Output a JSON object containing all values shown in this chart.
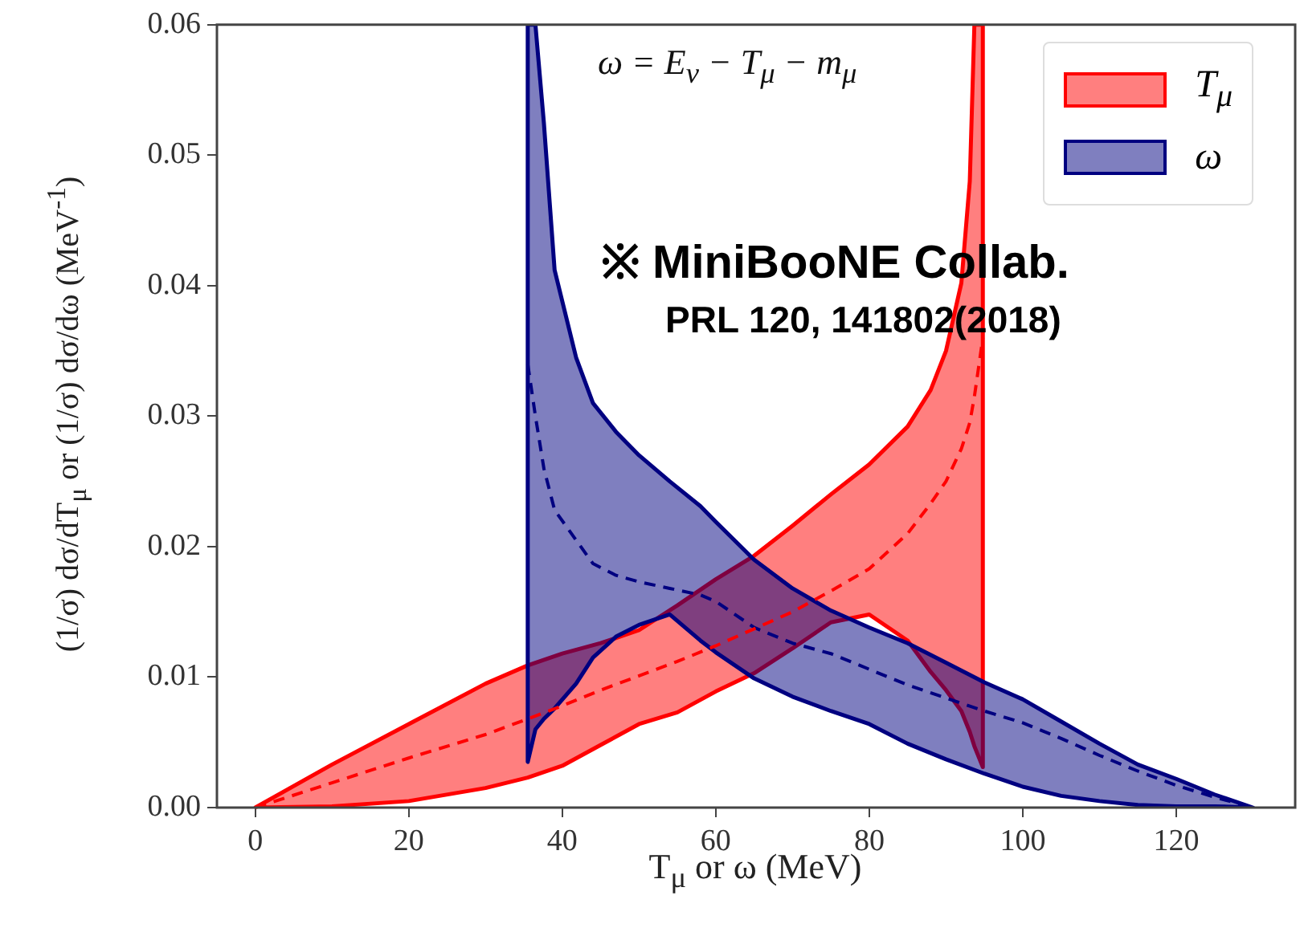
{
  "chart_data": {
    "type": "line",
    "xlabel": "T$_{μ}$ or ω (MeV)",
    "ylabel": "(1/σ) dσ/dT$_{μ}$ or (1/σ) dσ/dω (MeV$^{-1}$)",
    "annotations": [
      "ω = E$_{ν}$ − T$_{μ}$ − m$_{μ}$",
      "※ MiniBooNE Collab.",
      "PRL 120, 141802(2018)"
    ],
    "xlim": [
      -5,
      135.5
    ],
    "xticks": [
      0,
      20,
      40,
      60,
      80,
      100,
      120
    ],
    "ylim": [
      0,
      0.06
    ],
    "yticks": [
      {
        "value": 0,
        "label": "0.00"
      },
      {
        "value": 0.01,
        "label": "0.01"
      },
      {
        "value": 0.02,
        "label": "0.02"
      },
      {
        "value": 0.03,
        "label": "0.03"
      },
      {
        "value": 0.04,
        "label": "0.04"
      },
      {
        "value": 0.05,
        "label": "0.05"
      },
      {
        "value": 0.06,
        "label": "0.06"
      }
    ],
    "grid": false,
    "legend": "top right",
    "marker": "none",
    "line_style": "dashed",
    "series": [
      {
        "name": "T$_{μ}$",
        "color": "#ff0000",
        "x": [
          0,
          10,
          20,
          30,
          35.5,
          40,
          45,
          50,
          55,
          60,
          65,
          70,
          75,
          80,
          85,
          88,
          90,
          92,
          93.1,
          93.7,
          94.8
        ],
        "values": [
          0,
          0.0019,
          0.0038,
          0.0056,
          0.0068,
          0.0078,
          0.009,
          0.0101,
          0.0112,
          0.0124,
          0.0137,
          0.015,
          0.0166,
          0.0183,
          0.021,
          0.0233,
          0.025,
          0.0275,
          0.0295,
          0.0315,
          0.036
        ],
        "upper": [
          0,
          0.0033,
          0.0064,
          0.0095,
          0.0109,
          0.0118,
          0.0126,
          0.0136,
          0.0155,
          0.0175,
          0.0193,
          0.0216,
          0.024,
          0.0263,
          0.0292,
          0.032,
          0.035,
          0.0402,
          0.048,
          0.06,
          0.06
        ],
        "lower": [
          0,
          0.0001,
          0.0005,
          0.0015,
          0.0023,
          0.0032,
          0.0048,
          0.0064,
          0.0073,
          0.0089,
          0.0103,
          0.0122,
          0.0142,
          0.0148,
          0.0128,
          0.0104,
          0.009,
          0.0074,
          0.0058,
          0.0047,
          0.0031
        ]
      },
      {
        "name": "ω",
        "color": "#000080",
        "x": [
          35.5,
          36.5,
          37.6,
          39,
          41.8,
          44,
          47,
          50,
          54,
          58,
          60,
          65,
          70,
          75,
          80,
          85,
          90,
          95,
          100,
          105,
          110,
          115,
          120,
          125,
          130
        ],
        "values": [
          0.034,
          0.03,
          0.026,
          0.0228,
          0.0205,
          0.0187,
          0.0178,
          0.0173,
          0.0168,
          0.0163,
          0.0158,
          0.0138,
          0.0126,
          0.0118,
          0.0106,
          0.0094,
          0.0084,
          0.0074,
          0.0065,
          0.0053,
          0.004,
          0.0028,
          0.0017,
          0.0008,
          0
        ],
        "upper": [
          0.06,
          0.06,
          0.0525,
          0.0412,
          0.0345,
          0.031,
          0.0288,
          0.027,
          0.025,
          0.0231,
          0.0219,
          0.019,
          0.0168,
          0.0151,
          0.0138,
          0.0126,
          0.0111,
          0.0096,
          0.0083,
          0.0066,
          0.0049,
          0.0033,
          0.0022,
          0.001,
          0
        ],
        "lower": [
          0.0035,
          0.006,
          0.0068,
          0.0076,
          0.0095,
          0.0115,
          0.0131,
          0.014,
          0.0148,
          0.0128,
          0.0119,
          0.0099,
          0.0085,
          0.0074,
          0.0064,
          0.0049,
          0.0037,
          0.0026,
          0.0016,
          0.0009,
          0.0005,
          0.0002,
          0.0001,
          0.0001,
          0
        ]
      }
    ]
  }
}
